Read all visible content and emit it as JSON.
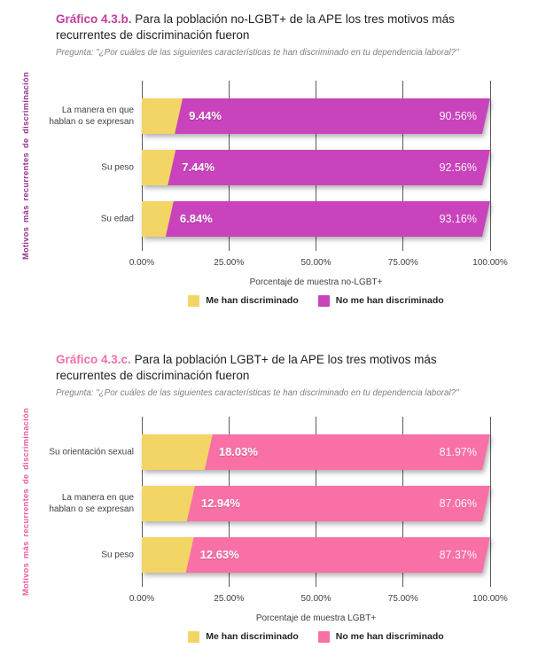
{
  "charts": [
    {
      "title_accent": "Gráfico 4.3.b.",
      "title_rest": "Para la población no-LGBT+ de la APE los tres motivos más recurrentes de discriminación fueron",
      "subtitle": "Pregunta: \"¿Por cuáles de las siguientes características te han discriminado en tu dependencia laboral?\"",
      "y_axis_title": "Motivos más recurrentes de discriminación",
      "x_axis_title": "Porcentaje de muestra no-LGBT+",
      "x_ticks": [
        "0.00%",
        "25.00%",
        "50.00%",
        "75.00%",
        "100.00%"
      ],
      "legend": [
        {
          "label": "Me han discriminado",
          "color": "#F3D566"
        },
        {
          "label": "No me han discriminado",
          "color": "#C943BC"
        }
      ],
      "colors": {
        "accent": "#C23C9E",
        "y_title": "#9A3191",
        "series1": "#F3D566",
        "series2": "#C943BC",
        "gridline": "#5B5B5E"
      },
      "chart_data": {
        "type": "bar",
        "orientation": "horizontal",
        "stacked": true,
        "title": "Gráfico 4.3.b. Para la población no-LGBT+ de la APE los tres motivos más recurrentes de discriminación fueron",
        "categories": [
          "La manera en que hablan o se expresan",
          "Su peso",
          "Su edad"
        ],
        "series": [
          {
            "name": "Me han discriminado",
            "values": [
              9.44,
              7.44,
              6.84
            ]
          },
          {
            "name": "No me han discriminado",
            "values": [
              90.56,
              92.56,
              93.16
            ]
          }
        ],
        "value_labels": [
          [
            "9.44%",
            "90.56%"
          ],
          [
            "7.44%",
            "92.56%"
          ],
          [
            "6.84%",
            "93.16%"
          ]
        ],
        "xlabel": "Porcentaje de muestra no-LGBT+",
        "ylabel": "Motivos más recurrentes de discriminación",
        "xlim": [
          0,
          100
        ],
        "grid": true,
        "legend_position": "bottom"
      }
    },
    {
      "title_accent": "Gráfico 4.3.c.",
      "title_rest": "Para la población LGBT+ de la APE los tres motivos más recurrentes de discriminación fueron",
      "subtitle": "Pregunta: \"¿Por cuáles de las siguientes características te han discriminado en tu dependencia laboral?\"",
      "y_axis_title": "Motivos más recurrentes de discriminación",
      "x_axis_title": "Porcentaje de muestra LGBT+",
      "x_ticks": [
        "0.00%",
        "25.00%",
        "50.00%",
        "75.00%",
        "100.00%"
      ],
      "legend": [
        {
          "label": "Me han discriminado",
          "color": "#F3D566"
        },
        {
          "label": "No me han discriminado",
          "color": "#F970A6"
        }
      ],
      "colors": {
        "accent": "#F36FA9",
        "y_title": "#EC5C9F",
        "series1": "#F3D566",
        "series2": "#F970A6",
        "gridline": "#5B5B5E"
      },
      "chart_data": {
        "type": "bar",
        "orientation": "horizontal",
        "stacked": true,
        "title": "Gráfico 4.3.c. Para la población LGBT+ de la APE los tres motivos más recurrentes de discriminación fueron",
        "categories": [
          "Su orientación sexual",
          "La manera en que hablan o se expresan",
          "Su peso"
        ],
        "series": [
          {
            "name": "Me han discriminado",
            "values": [
              18.03,
              12.94,
              12.63
            ]
          },
          {
            "name": "No me han discriminado",
            "values": [
              81.97,
              87.06,
              87.37
            ]
          }
        ],
        "value_labels": [
          [
            "18.03%",
            "81.97%"
          ],
          [
            "12.94%",
            "87.06%"
          ],
          [
            "12.63%",
            "87.37%"
          ]
        ],
        "xlabel": "Porcentaje de muestra LGBT+",
        "ylabel": "Motivos más recurrentes de discriminación",
        "xlim": [
          0,
          100
        ],
        "grid": true,
        "legend_position": "bottom"
      }
    }
  ]
}
